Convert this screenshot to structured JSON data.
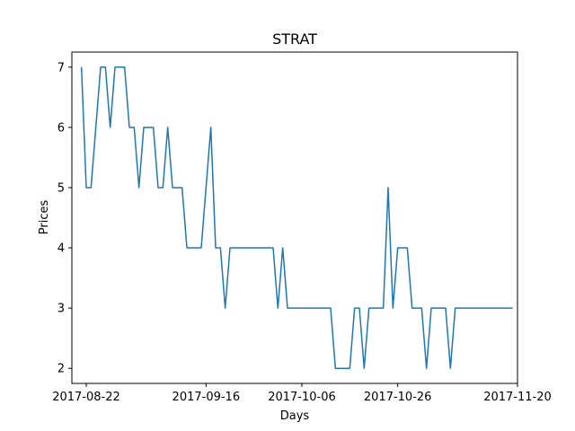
{
  "chart_data": {
    "type": "line",
    "title": "STRAT",
    "xlabel": "Days",
    "ylabel": "Prices",
    "x_type": "date",
    "xlim": [
      "2017-08-19",
      "2017-11-20"
    ],
    "ylim": [
      1.75,
      7.25
    ],
    "x_ticks": [
      "2017-08-22",
      "2017-09-16",
      "2017-10-06",
      "2017-10-26",
      "2017-11-20"
    ],
    "y_ticks": [
      2,
      3,
      4,
      5,
      6,
      7
    ],
    "grid": false,
    "series": [
      {
        "color": "#1f77b4",
        "points": [
          [
            "2017-08-21",
            7
          ],
          [
            "2017-08-22",
            5
          ],
          [
            "2017-08-23",
            5
          ],
          [
            "2017-08-24",
            6
          ],
          [
            "2017-08-25",
            7
          ],
          [
            "2017-08-26",
            7
          ],
          [
            "2017-08-27",
            6
          ],
          [
            "2017-08-28",
            7
          ],
          [
            "2017-08-29",
            7
          ],
          [
            "2017-08-30",
            7
          ],
          [
            "2017-08-31",
            6
          ],
          [
            "2017-09-01",
            6
          ],
          [
            "2017-09-02",
            5
          ],
          [
            "2017-09-03",
            6
          ],
          [
            "2017-09-04",
            6
          ],
          [
            "2017-09-05",
            6
          ],
          [
            "2017-09-06",
            5
          ],
          [
            "2017-09-07",
            5
          ],
          [
            "2017-09-08",
            6
          ],
          [
            "2017-09-09",
            5
          ],
          [
            "2017-09-10",
            5
          ],
          [
            "2017-09-11",
            5
          ],
          [
            "2017-09-12",
            4
          ],
          [
            "2017-09-13",
            4
          ],
          [
            "2017-09-14",
            4
          ],
          [
            "2017-09-15",
            4
          ],
          [
            "2017-09-16",
            5
          ],
          [
            "2017-09-17",
            6
          ],
          [
            "2017-09-18",
            4
          ],
          [
            "2017-09-19",
            4
          ],
          [
            "2017-09-20",
            3
          ],
          [
            "2017-09-21",
            4
          ],
          [
            "2017-09-22",
            4
          ],
          [
            "2017-09-23",
            4
          ],
          [
            "2017-09-24",
            4
          ],
          [
            "2017-09-25",
            4
          ],
          [
            "2017-09-26",
            4
          ],
          [
            "2017-09-27",
            4
          ],
          [
            "2017-09-28",
            4
          ],
          [
            "2017-09-29",
            4
          ],
          [
            "2017-09-30",
            4
          ],
          [
            "2017-10-01",
            3
          ],
          [
            "2017-10-02",
            4
          ],
          [
            "2017-10-03",
            3
          ],
          [
            "2017-10-04",
            3
          ],
          [
            "2017-10-05",
            3
          ],
          [
            "2017-10-06",
            3
          ],
          [
            "2017-10-07",
            3
          ],
          [
            "2017-10-08",
            3
          ],
          [
            "2017-10-09",
            3
          ],
          [
            "2017-10-10",
            3
          ],
          [
            "2017-10-11",
            3
          ],
          [
            "2017-10-12",
            3
          ],
          [
            "2017-10-13",
            2
          ],
          [
            "2017-10-14",
            2
          ],
          [
            "2017-10-15",
            2
          ],
          [
            "2017-10-16",
            2
          ],
          [
            "2017-10-17",
            3
          ],
          [
            "2017-10-18",
            3
          ],
          [
            "2017-10-19",
            2
          ],
          [
            "2017-10-20",
            3
          ],
          [
            "2017-10-21",
            3
          ],
          [
            "2017-10-22",
            3
          ],
          [
            "2017-10-23",
            3
          ],
          [
            "2017-10-24",
            5
          ],
          [
            "2017-10-25",
            3
          ],
          [
            "2017-10-26",
            4
          ],
          [
            "2017-10-27",
            4
          ],
          [
            "2017-10-28",
            4
          ],
          [
            "2017-10-29",
            3
          ],
          [
            "2017-10-30",
            3
          ],
          [
            "2017-10-31",
            3
          ],
          [
            "2017-11-01",
            2
          ],
          [
            "2017-11-02",
            3
          ],
          [
            "2017-11-03",
            3
          ],
          [
            "2017-11-04",
            3
          ],
          [
            "2017-11-05",
            3
          ],
          [
            "2017-11-06",
            2
          ],
          [
            "2017-11-07",
            3
          ],
          [
            "2017-11-08",
            3
          ],
          [
            "2017-11-09",
            3
          ],
          [
            "2017-11-10",
            3
          ],
          [
            "2017-11-11",
            3
          ],
          [
            "2017-11-12",
            3
          ],
          [
            "2017-11-13",
            3
          ],
          [
            "2017-11-14",
            3
          ],
          [
            "2017-11-15",
            3
          ],
          [
            "2017-11-16",
            3
          ],
          [
            "2017-11-17",
            3
          ],
          [
            "2017-11-18",
            3
          ],
          [
            "2017-11-19",
            3
          ]
        ]
      }
    ]
  }
}
